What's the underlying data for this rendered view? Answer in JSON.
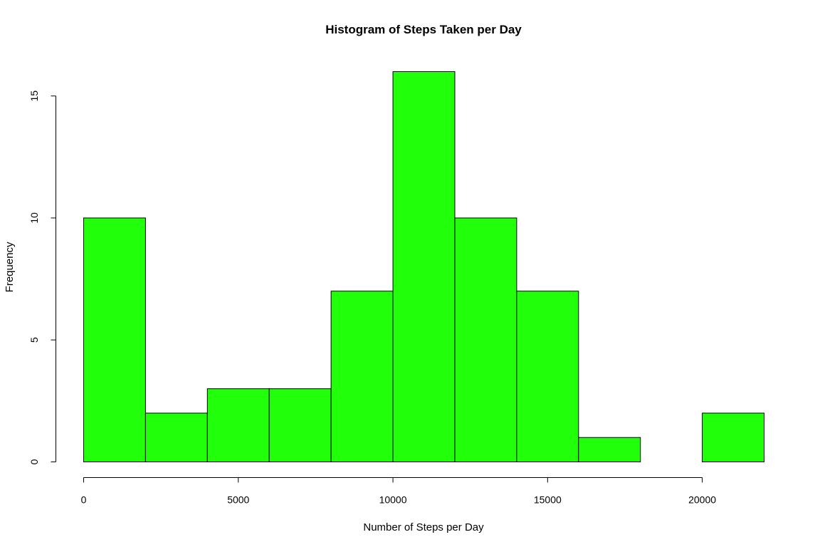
{
  "chart_data": {
    "type": "bar",
    "title": "Histogram of Steps Taken per Day",
    "xlabel": "Number of Steps per Day",
    "ylabel": "Frequency",
    "bin_edges": [
      0,
      2000,
      4000,
      6000,
      8000,
      10000,
      12000,
      14000,
      16000,
      18000,
      20000,
      22000
    ],
    "values": [
      10,
      2,
      3,
      3,
      7,
      16,
      10,
      7,
      1,
      0,
      2
    ],
    "xlim": [
      0,
      22000
    ],
    "ylim": [
      0,
      16
    ],
    "x_ticks": [
      0,
      5000,
      10000,
      15000,
      20000
    ],
    "x_tick_labels": [
      "0",
      "5000",
      "10000",
      "15000",
      "20000"
    ],
    "y_ticks": [
      0,
      5,
      10,
      15
    ],
    "y_tick_labels": [
      "0",
      "5",
      "10",
      "15"
    ],
    "bar_color": "#22ff0a",
    "grid": false,
    "legend": "none"
  }
}
